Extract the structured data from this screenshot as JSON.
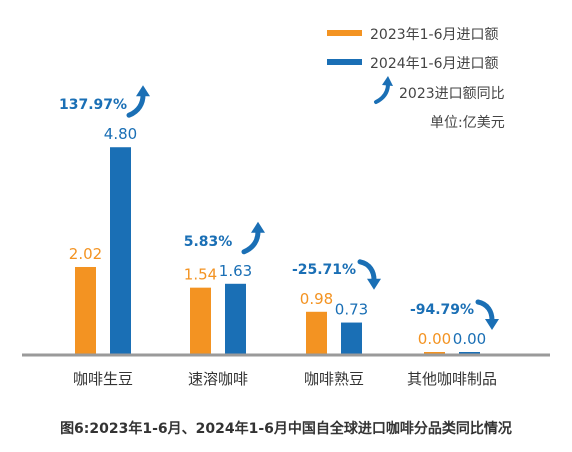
{
  "chart_data": {
    "type": "bar",
    "categories": [
      "咖啡生豆",
      "速溶咖啡",
      "咖啡熟豆",
      "其他咖啡制品"
    ],
    "series": [
      {
        "name": "2023年1-6月进口额",
        "values": [
          2.02,
          1.54,
          0.98,
          0.0
        ],
        "labels": [
          "2.02",
          "1.54",
          "0.98",
          "0.00"
        ],
        "color": "#f39322"
      },
      {
        "name": "2024年1-6月进口额",
        "values": [
          4.8,
          1.63,
          0.73,
          0.0
        ],
        "labels": [
          "4.80",
          "1.63",
          "0.73",
          "0.00"
        ],
        "color": "#1a6fb5"
      }
    ],
    "growth": {
      "name": "2023进口额同比",
      "labels": [
        "137.97%",
        "5.83%",
        "-25.71%",
        "-94.79%"
      ],
      "directions": [
        "up",
        "up",
        "down",
        "down"
      ],
      "color": "#1a6fb5"
    },
    "unit": "单位:亿美元",
    "ylim": [
      0,
      5.2
    ]
  },
  "caption": "图6:2023年1-6月、2024年1-6月中国自全球进口咖啡分品类同比情况"
}
